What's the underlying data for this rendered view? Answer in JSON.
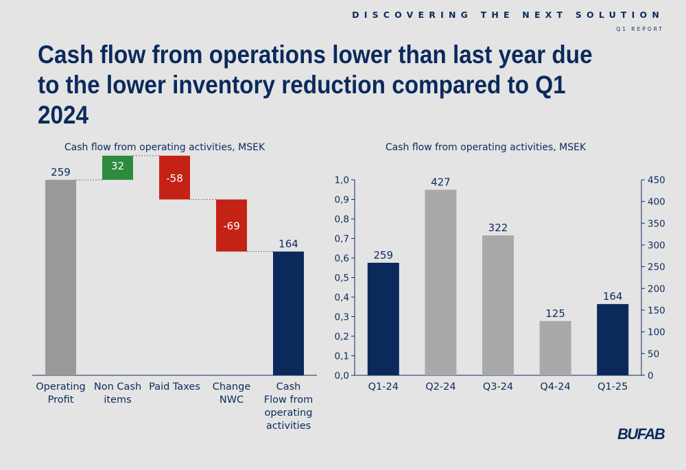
{
  "header": {
    "tagline": "DISCOVERING THE NEXT SOLUTION",
    "report": "Q1 REPORT",
    "title": "Cash flow from operations lower than last year due to the lower inventory reduction compared to Q1 2024",
    "logo": "BUFAB"
  },
  "colors": {
    "navy": "#0b2a5c",
    "gray_bar": "#999999",
    "light_gray_bar": "#a9a9a9",
    "green": "#2e8b3e",
    "red": "#c42214",
    "background": "#e4e4e4"
  },
  "chart_data": [
    {
      "type": "waterfall",
      "title": "Cash flow from operating activities, MSEK",
      "categories": [
        "Operating Profit",
        "Non Cash items",
        "Paid Taxes",
        "Change NWC",
        "Cash Flow from operating activities"
      ],
      "category_lines": [
        [
          "Operating",
          "Profit"
        ],
        [
          "Non Cash",
          "items"
        ],
        [
          "Paid Taxes"
        ],
        [
          "Change",
          "NWC"
        ],
        [
          "Cash",
          "Flow from",
          "operating",
          "activities"
        ]
      ],
      "values": [
        259,
        32,
        -58,
        -69,
        164
      ],
      "labels": [
        "259",
        "32",
        "-58",
        "-69",
        "164"
      ],
      "kinds": [
        "total",
        "increase",
        "decrease",
        "decrease",
        "total"
      ]
    },
    {
      "type": "bar",
      "title": "Cash flow from operating activities, MSEK",
      "categories": [
        "Q1-24",
        "Q2-24",
        "Q3-24",
        "Q4-24",
        "Q1-25"
      ],
      "values": [
        259,
        427,
        322,
        125,
        164
      ],
      "highlight": [
        true,
        false,
        false,
        false,
        true
      ],
      "y_left": {
        "min": 0,
        "max": 1,
        "ticks": [
          "0,0",
          "0,1",
          "0,2",
          "0,3",
          "0,4",
          "0,5",
          "0,6",
          "0,7",
          "0,8",
          "0,9",
          "1,0"
        ]
      },
      "y_right": {
        "min": 0,
        "max": 450,
        "ticks": [
          "0",
          "50",
          "100",
          "150",
          "200",
          "250",
          "300",
          "350",
          "400",
          "450"
        ]
      }
    }
  ]
}
